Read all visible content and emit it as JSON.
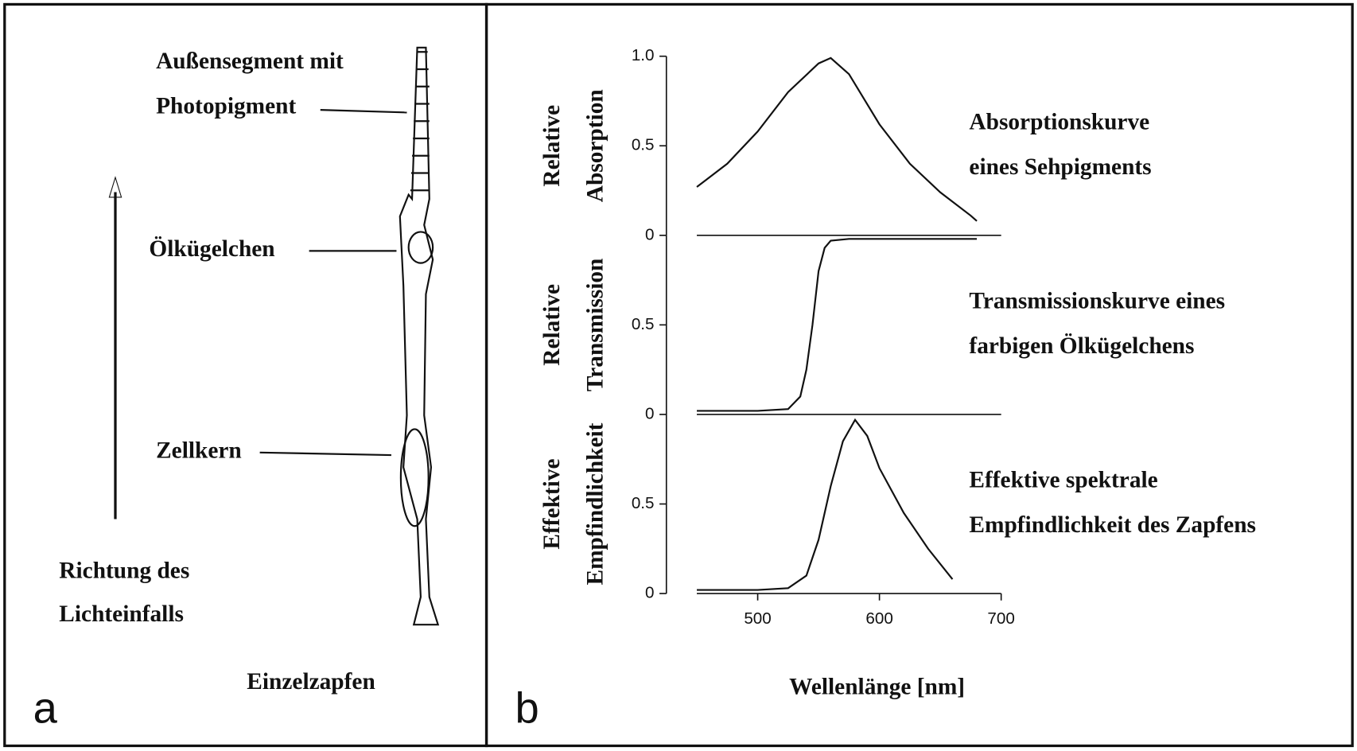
{
  "panel_a": {
    "letter": "a",
    "labels": [
      "Außensegment mit",
      "Photopigment",
      "Ölkügelchen",
      "Zellkern"
    ],
    "arrow_label": [
      "Richtung des",
      "Lichteinfalls"
    ],
    "caption": "Einzelzapfen"
  },
  "panel_b": {
    "letter": "b"
  },
  "chart_data": [
    {
      "type": "line",
      "y_label": [
        "Relative",
        "Absorption"
      ],
      "annotation": [
        "Absorptionskurve",
        "eines Sehpigments"
      ],
      "x": [
        450,
        475,
        500,
        525,
        550,
        560,
        575,
        600,
        625,
        650,
        675,
        680
      ],
      "series": [
        {
          "color": "#000000",
          "values": [
            0.27,
            0.4,
            0.58,
            0.8,
            0.96,
            0.99,
            0.9,
            0.62,
            0.4,
            0.24,
            0.11,
            0.08
          ]
        }
      ],
      "xlim": [
        425,
        700
      ],
      "ylim": [
        0,
        1
      ],
      "yticks": [
        0,
        0.5,
        {
          "value": 1,
          "label": "1.0"
        }
      ],
      "grid": false
    },
    {
      "type": "line",
      "y_label": [
        "Relative",
        "Transmission"
      ],
      "annotation": [
        "Transmissionskurve eines",
        "farbigen Ölkügelchens"
      ],
      "x": [
        450,
        500,
        525,
        535,
        540,
        545,
        550,
        555,
        560,
        575,
        600,
        650,
        680
      ],
      "series": [
        {
          "color": "#000000",
          "values": [
            0.02,
            0.02,
            0.03,
            0.1,
            0.25,
            0.5,
            0.8,
            0.93,
            0.97,
            0.98,
            0.98,
            0.98,
            0.98
          ]
        }
      ],
      "xlim": [
        425,
        700
      ],
      "ylim": [
        0,
        1
      ],
      "yticks": [
        0,
        0.5
      ],
      "grid": false
    },
    {
      "type": "line",
      "y_label": [
        "Effektive",
        "Empfindlichkeit"
      ],
      "annotation": [
        "Effektive spektrale",
        "Empfindlichkeit des Zapfens"
      ],
      "x": [
        450,
        500,
        525,
        540,
        550,
        560,
        570,
        580,
        590,
        600,
        620,
        640,
        660
      ],
      "series": [
        {
          "color": "#000000",
          "values": [
            0.02,
            0.02,
            0.03,
            0.1,
            0.3,
            0.6,
            0.85,
            0.97,
            0.88,
            0.7,
            0.45,
            0.25,
            0.08
          ]
        }
      ],
      "xlim": [
        425,
        700
      ],
      "ylim": [
        0,
        1
      ],
      "yticks": [
        0,
        0.5
      ],
      "xticks": [
        500,
        600,
        700
      ],
      "x_label": "Wellenlänge [nm]",
      "grid": false
    }
  ]
}
